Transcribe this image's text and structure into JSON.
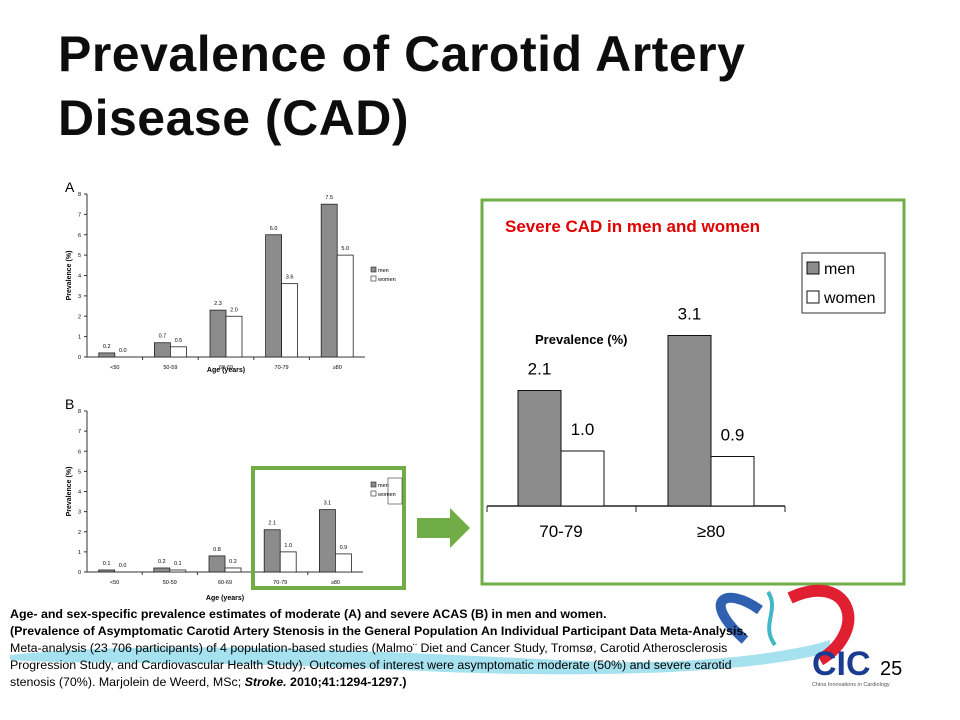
{
  "slide": {
    "title_line1": "Prevalence of Carotid Artery",
    "title_line2": "Disease (CAD)",
    "page_number": "25",
    "logo_text": "CIC",
    "logo_subtext": "China Innovations in Cardiology",
    "caption": {
      "line1": "Age- and sex-specific prevalence estimates of moderate (A) and severe ACAS (B) in men and women.",
      "line2": "(Prevalence of Asymptomatic Carotid Artery Stenosis in the General Population An Individual Participant Data Meta-Analysis.",
      "line3": "Meta-analysis (23 706 participants) of 4 population-based studies (Malmo¨ Diet and Cancer Study, Tromsø, Carotid Atherosclerosis",
      "line4": "Progression Study, and Cardiovascular Health Study). Outcomes of interest were asymptomatic moderate (50%) and severe carotid",
      "line5a": "stenosis (70%).  Marjolein de Weerd, MSc; ",
      "line5b": "Stroke.",
      "line5c": " 2010;41:1294-1297.)"
    },
    "colors": {
      "men": "#8c8c8c",
      "women": "#ffffff",
      "highlight": "#70ad47",
      "title_red": "#e00000"
    }
  },
  "chart_data": [
    {
      "type": "bar",
      "panel_label": "A",
      "categories": [
        "<50",
        "50-59",
        "60-69",
        "70-79",
        "≥80"
      ],
      "series": [
        {
          "name": "men",
          "values": [
            0.2,
            0.7,
            2.3,
            6.0,
            7.5
          ]
        },
        {
          "name": "women",
          "values": [
            0.0,
            0.5,
            2.0,
            3.6,
            5.0
          ]
        }
      ],
      "xlabel": "Age (years)",
      "ylabel": "Prevalence (%)",
      "ylim": [
        0,
        8
      ],
      "yticks": [
        "0",
        "1",
        "2",
        "3",
        "4",
        "5",
        "6",
        "7",
        "8"
      ],
      "legend": "right"
    },
    {
      "type": "bar",
      "panel_label": "B",
      "categories": [
        "<50",
        "50-59",
        "60-69",
        "70-79",
        "≥80"
      ],
      "series": [
        {
          "name": "men",
          "values": [
            0.1,
            0.2,
            0.8,
            2.1,
            3.1
          ]
        },
        {
          "name": "women",
          "values": [
            0.0,
            0.1,
            0.2,
            1.0,
            0.9
          ]
        }
      ],
      "xlabel": "Age (years)",
      "ylabel": "Prevalence (%)",
      "ylim": [
        0,
        8
      ],
      "yticks": [
        "0",
        "1",
        "2",
        "3",
        "4",
        "5",
        "6",
        "7",
        "8"
      ],
      "legend": "right"
    },
    {
      "type": "bar",
      "title": "Severe CAD in men and women",
      "categories": [
        "70-79",
        "≥80"
      ],
      "series": [
        {
          "name": "men",
          "values": [
            2.1,
            3.1
          ]
        },
        {
          "name": "women",
          "values": [
            1.0,
            0.9
          ]
        }
      ],
      "ylabel": "Prevalence (%)",
      "legend": "top-right"
    }
  ]
}
